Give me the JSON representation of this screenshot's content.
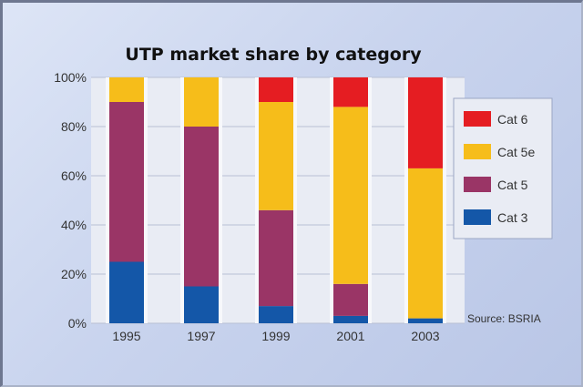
{
  "chart_data": {
    "type": "bar",
    "stacked": true,
    "title": "UTP market share by category",
    "categories": [
      "1995",
      "1997",
      "1999",
      "2001",
      "2003"
    ],
    "series": [
      {
        "name": "Cat 3",
        "color": "#1457a8",
        "values": [
          25,
          15,
          7,
          3,
          2
        ]
      },
      {
        "name": "Cat 5",
        "color": "#9a3566",
        "values": [
          65,
          65,
          39,
          13,
          0
        ]
      },
      {
        "name": "Cat 5e",
        "color": "#f6bd1a",
        "values": [
          10,
          20,
          44,
          72,
          61
        ]
      },
      {
        "name": "Cat 6",
        "color": "#e51d22",
        "values": [
          0,
          0,
          10,
          12,
          37
        ]
      }
    ],
    "yticks": [
      "0%",
      "20%",
      "40%",
      "60%",
      "80%",
      "100%"
    ],
    "ylim": [
      0,
      100
    ],
    "grid": true,
    "legend_position": "right",
    "legend_order": [
      "Cat 6",
      "Cat 5e",
      "Cat 5",
      "Cat 3"
    ],
    "source_note": "Source: BSRIA"
  }
}
